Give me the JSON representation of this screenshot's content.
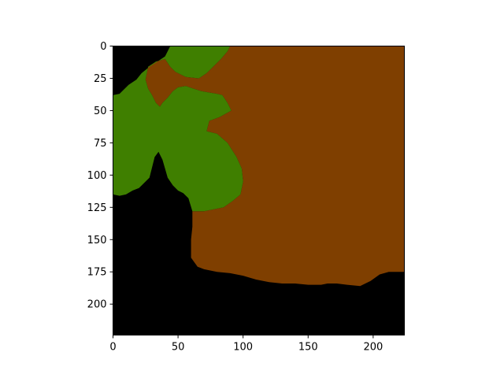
{
  "chart_data": {
    "type": "heatmap",
    "title": "",
    "xlabel": "",
    "ylabel": "",
    "xlim": [
      0,
      224
    ],
    "ylim": [
      224,
      0
    ],
    "xticks": [
      0,
      50,
      100,
      150,
      200
    ],
    "yticks": [
      0,
      25,
      50,
      75,
      100,
      125,
      150,
      175,
      200
    ],
    "grid": false,
    "legend": "none",
    "colors": {
      "background": "#000000",
      "brown": "#7f3f00",
      "green": "#3f7f00"
    },
    "regions": [
      {
        "class": "brown",
        "color": "#7f3f00",
        "polygon": [
          [
            90,
            0
          ],
          [
            224,
            0
          ],
          [
            224,
            175
          ],
          [
            212,
            175
          ],
          [
            205,
            177
          ],
          [
            198,
            182
          ],
          [
            190,
            186
          ],
          [
            180,
            185
          ],
          [
            172,
            184
          ],
          [
            165,
            184
          ],
          [
            160,
            185
          ],
          [
            150,
            185
          ],
          [
            140,
            184
          ],
          [
            130,
            184
          ],
          [
            120,
            183
          ],
          [
            110,
            181
          ],
          [
            100,
            178
          ],
          [
            90,
            176
          ],
          [
            80,
            175
          ],
          [
            70,
            173
          ],
          [
            65,
            171
          ],
          [
            60,
            164
          ],
          [
            60,
            150
          ],
          [
            61,
            140
          ],
          [
            61,
            128
          ],
          [
            70,
            128
          ],
          [
            85,
            125
          ],
          [
            92,
            120
          ],
          [
            98,
            115
          ],
          [
            100,
            105
          ],
          [
            99,
            95
          ],
          [
            95,
            86
          ],
          [
            88,
            75
          ],
          [
            80,
            68
          ],
          [
            72,
            66
          ],
          [
            74,
            58
          ],
          [
            82,
            55
          ],
          [
            91,
            50
          ],
          [
            88,
            44
          ],
          [
            84,
            38
          ],
          [
            80,
            37
          ],
          [
            74,
            36
          ],
          [
            68,
            35
          ],
          [
            62,
            33
          ],
          [
            56,
            31
          ],
          [
            50,
            32
          ],
          [
            46,
            35
          ],
          [
            42,
            40
          ],
          [
            38,
            44
          ],
          [
            36,
            47
          ],
          [
            33,
            44
          ],
          [
            30,
            38
          ],
          [
            27,
            33
          ],
          [
            25,
            26
          ],
          [
            27,
            16
          ],
          [
            33,
            12
          ],
          [
            40,
            10
          ],
          [
            44,
            16
          ],
          [
            48,
            20
          ],
          [
            56,
            24
          ],
          [
            66,
            25
          ],
          [
            72,
            21
          ],
          [
            78,
            15
          ],
          [
            83,
            10
          ],
          [
            88,
            4
          ]
        ]
      },
      {
        "class": "green",
        "color": "#3f7f00",
        "polygon": [
          [
            44,
            0
          ],
          [
            90,
            0
          ],
          [
            88,
            4
          ],
          [
            83,
            10
          ],
          [
            78,
            15
          ],
          [
            72,
            21
          ],
          [
            66,
            25
          ],
          [
            56,
            24
          ],
          [
            48,
            20
          ],
          [
            44,
            16
          ],
          [
            40,
            10
          ],
          [
            33,
            12
          ],
          [
            27,
            16
          ],
          [
            25,
            26
          ],
          [
            27,
            33
          ],
          [
            30,
            38
          ],
          [
            33,
            44
          ],
          [
            36,
            47
          ],
          [
            38,
            44
          ],
          [
            42,
            40
          ],
          [
            46,
            35
          ],
          [
            50,
            32
          ],
          [
            56,
            31
          ],
          [
            62,
            33
          ],
          [
            68,
            35
          ],
          [
            74,
            36
          ],
          [
            80,
            37
          ],
          [
            84,
            38
          ],
          [
            88,
            44
          ],
          [
            91,
            50
          ],
          [
            82,
            55
          ],
          [
            74,
            58
          ],
          [
            72,
            66
          ],
          [
            80,
            68
          ],
          [
            88,
            75
          ],
          [
            95,
            86
          ],
          [
            99,
            95
          ],
          [
            100,
            105
          ],
          [
            98,
            115
          ],
          [
            92,
            120
          ],
          [
            85,
            125
          ],
          [
            70,
            128
          ],
          [
            61,
            128
          ],
          [
            58,
            118
          ],
          [
            54,
            114
          ],
          [
            50,
            112
          ],
          [
            46,
            108
          ],
          [
            42,
            102
          ],
          [
            40,
            95
          ],
          [
            38,
            88
          ],
          [
            35,
            82
          ],
          [
            32,
            86
          ],
          [
            30,
            94
          ],
          [
            28,
            102
          ],
          [
            24,
            106
          ],
          [
            20,
            110
          ],
          [
            15,
            112
          ],
          [
            10,
            115
          ],
          [
            5,
            116
          ],
          [
            0,
            115
          ],
          [
            0,
            38
          ],
          [
            5,
            37
          ],
          [
            8,
            34
          ],
          [
            12,
            30
          ],
          [
            18,
            26
          ],
          [
            22,
            21
          ],
          [
            28,
            16
          ],
          [
            34,
            12
          ],
          [
            40,
            8
          ],
          [
            42,
            4
          ]
        ]
      }
    ]
  }
}
